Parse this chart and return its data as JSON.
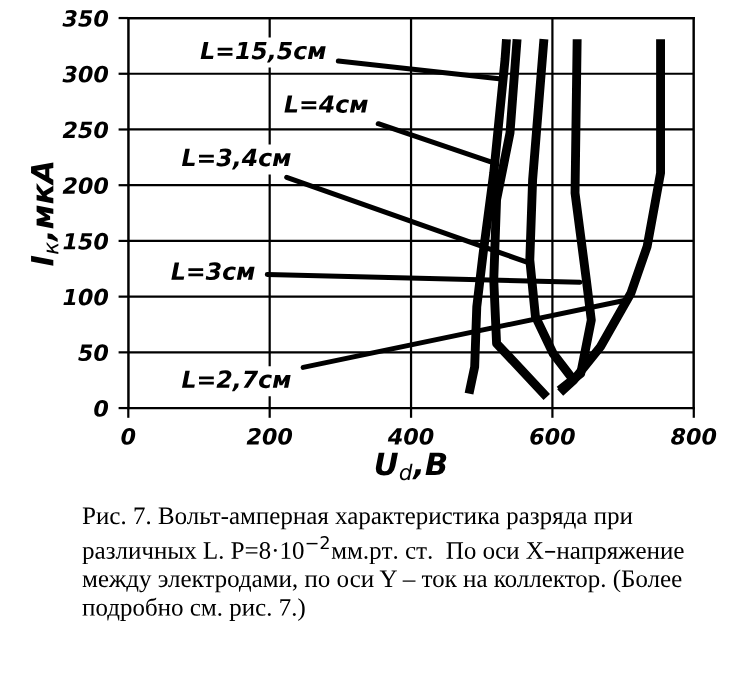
{
  "chart_data": {
    "type": "line",
    "xlabel": "U$_{d}$,B",
    "ylabel": "I$_{к}$,мкА",
    "xlim": [
      0,
      800
    ],
    "xticks": [
      0,
      200,
      400,
      600,
      800
    ],
    "ylim": [
      0,
      350
    ],
    "yticks": [
      0,
      50,
      100,
      150,
      200,
      250,
      300,
      350
    ],
    "grid": true,
    "legend": false,
    "marker": "none",
    "line_style": "solid",
    "series": [
      {
        "name": "L=15,5см",
        "color": "#000000",
        "x": [
          482,
          490,
          493,
          502,
          517,
          533,
          535
        ],
        "values": [
          13,
          37,
          91,
          139,
          211,
          313,
          331
        ]
      },
      {
        "name": "L=4см",
        "color": "#000000",
        "x": [
          592,
          521,
          517,
          521,
          540,
          545,
          550
        ],
        "values": [
          10,
          58,
          115,
          187,
          247,
          289,
          331
        ]
      },
      {
        "name": "L=3,4см",
        "color": "#000000",
        "x": [
          630,
          601,
          576,
          568,
          572,
          588
        ],
        "values": [
          25,
          49,
          82,
          133,
          205,
          331
        ]
      },
      {
        "name": "L=3см",
        "color": "#000000",
        "x": [
          610,
          640,
          655,
          648,
          632,
          635
        ],
        "values": [
          16,
          31,
          79,
          115,
          193,
          331
        ]
      },
      {
        "name": "L=2,7см",
        "color": "#000000",
        "x": [
          611,
          630,
          668,
          711,
          734,
          753,
          753
        ],
        "values": [
          14,
          25,
          55,
          103,
          145,
          211,
          331
        ]
      }
    ],
    "annotations": [
      "Рис. 7. Вольт-амперная характеристика разряда при различных L. P=8·10$^{−2}$мм.рт. ст.  По оси X–напряжение между электродами, по оси Y – ток на коллектор. (Более подробно см. рис. 7.)"
    ]
  }
}
